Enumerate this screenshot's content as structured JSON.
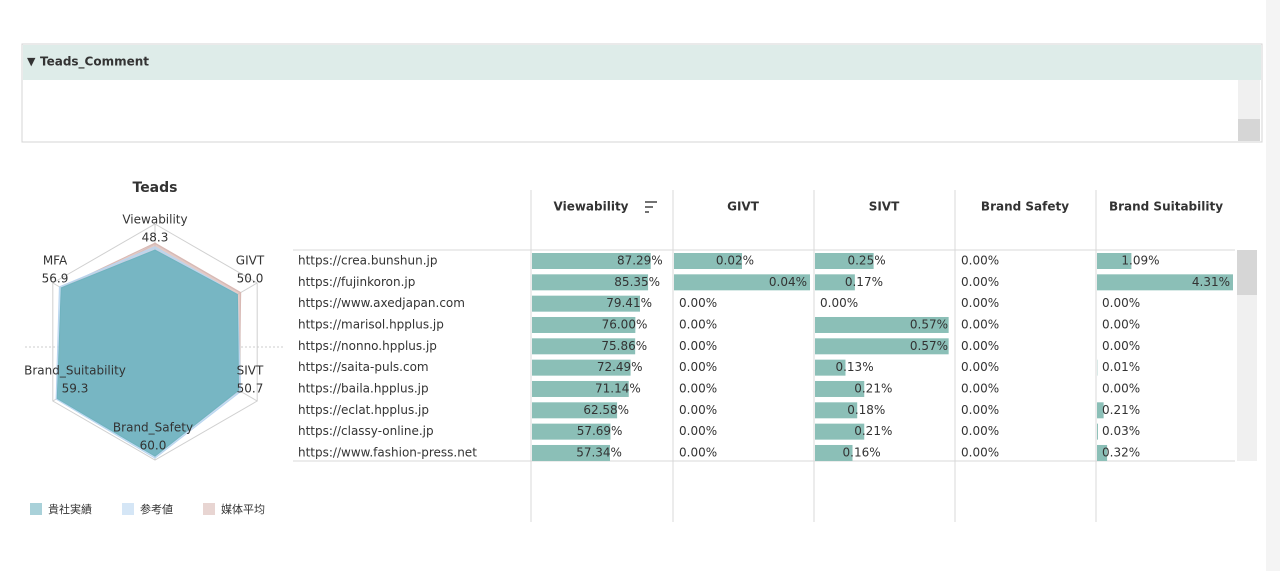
{
  "header": {
    "comment_title": "Teads_Comment"
  },
  "chart_data": [
    {
      "type": "radar",
      "title": "Teads",
      "categories": [
        "Viewability",
        "GIVT",
        "SIVT",
        "Brand_Safety",
        "Brand_Suitability",
        "MFA"
      ],
      "rlim": [
        0,
        62
      ],
      "legend": "bottom",
      "series": [
        {
          "name": "貴社実績",
          "color": "#6fb3bf",
          "values": [
            48.3,
            50,
            50.7,
            60,
            59.3,
            56.9
          ],
          "value_labels": [
            "48.3",
            "50.0",
            "50.7",
            "60.0",
            "59.3",
            "56.9"
          ]
        },
        {
          "name": "参考値",
          "color": "#b9d6f0",
          "values": [
            50,
            50,
            52,
            61,
            60,
            58
          ]
        },
        {
          "name": "媒体平均",
          "color": "#d9b9b4",
          "values": [
            52,
            52,
            51,
            60,
            58,
            57
          ]
        }
      ]
    },
    {
      "type": "bar-table",
      "categories": [
        "https://crea.bunshun.jp",
        "https://fujinkoron.jp",
        "https://www.axedjapan.com",
        "https://marisol.hpplus.jp",
        "https://nonno.hpplus.jp",
        "https://saita-puls.com",
        "https://baila.hpplus.jp",
        "https://eclat.hpplus.jp",
        "https://classy-online.jp",
        "https://www.fashion-press.net"
      ],
      "series": [
        {
          "name": "Viewability",
          "color": "#8bbfb7",
          "xlim": [
            0,
            100
          ],
          "values": [
            87.29,
            85.35,
            79.41,
            76.0,
            75.86,
            72.49,
            71.14,
            62.58,
            57.69,
            57.34
          ],
          "value_labels": [
            "87.29%",
            "85.35%",
            "79.41%",
            "76.00%",
            "75.86%",
            "72.49%",
            "71.14%",
            "62.58%",
            "57.69%",
            "57.34%"
          ]
        },
        {
          "name": "GIVT",
          "color": "#8bbfb7",
          "xlim": [
            0,
            0.04
          ],
          "values": [
            0.02,
            0.04,
            0,
            0,
            0,
            0,
            0,
            0,
            0,
            0
          ],
          "value_labels": [
            "0.02%",
            "0.04%",
            "0.00%",
            "0.00%",
            "0.00%",
            "0.00%",
            "0.00%",
            "0.00%",
            "0.00%",
            "0.00%"
          ]
        },
        {
          "name": "SIVT",
          "color": "#8bbfb7",
          "xlim": [
            0,
            0.58
          ],
          "values": [
            0.25,
            0.17,
            0,
            0.57,
            0.57,
            0.13,
            0.21,
            0.18,
            0.21,
            0.16
          ],
          "value_labels": [
            "0.25%",
            "0.17%",
            "0.00%",
            "0.57%",
            "0.57%",
            "0.13%",
            "0.21%",
            "0.18%",
            "0.21%",
            "0.16%"
          ]
        },
        {
          "name": "Brand Safety",
          "color": "#8bbfb7",
          "xlim": [
            0,
            1
          ],
          "values": [
            0,
            0,
            0,
            0,
            0,
            0,
            0,
            0,
            0,
            0
          ],
          "value_labels": [
            "0.00%",
            "0.00%",
            "0.00%",
            "0.00%",
            "0.00%",
            "0.00%",
            "0.00%",
            "0.00%",
            "0.00%",
            "0.00%"
          ]
        },
        {
          "name": "Brand Suitability",
          "color": "#8bbfb7",
          "xlim": [
            0,
            4.31
          ],
          "values": [
            1.09,
            4.31,
            0,
            0,
            0,
            0.01,
            0,
            0.21,
            0.03,
            0.32
          ],
          "value_labels": [
            "1.09%",
            "4.31%",
            "0.00%",
            "0.00%",
            "0.00%",
            "0.01%",
            "0.00%",
            "0.21%",
            "0.03%",
            "0.32%"
          ]
        }
      ]
    }
  ]
}
